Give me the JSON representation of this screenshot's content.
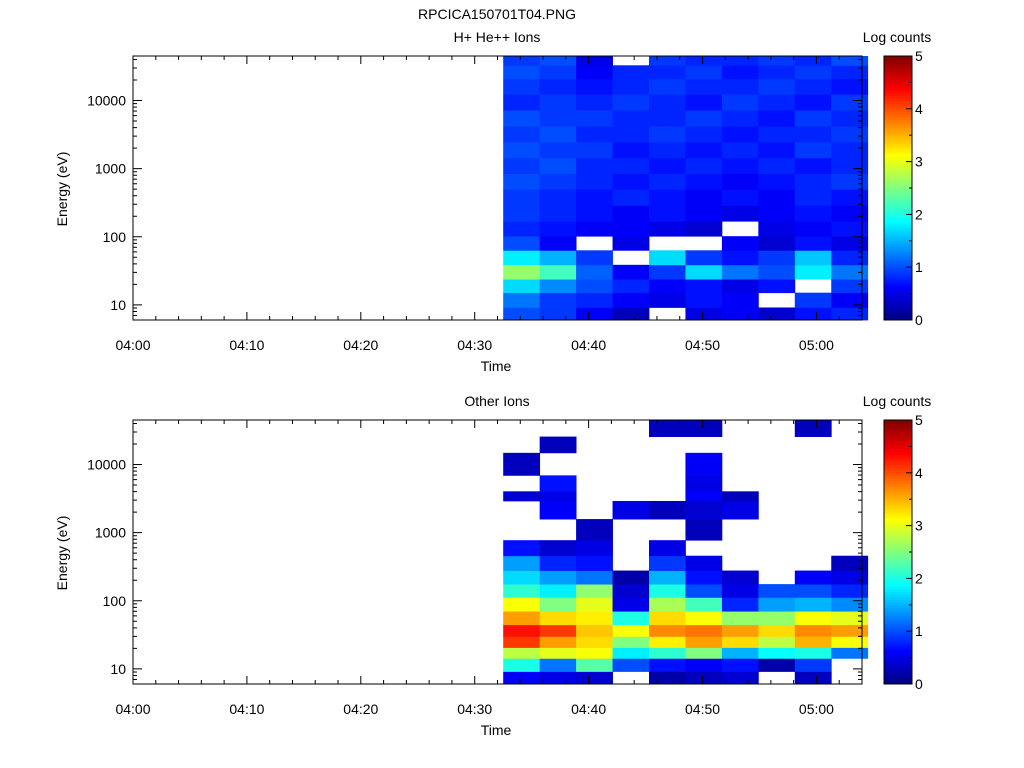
{
  "figure": {
    "title": "RPCICA150701T04.PNG"
  },
  "chart_data": [
    {
      "type": "heatmap",
      "title": "H+ He++ Ions",
      "xlabel": "Time",
      "ylabel": "Energy (eV)",
      "x_ticks": [
        "04:00",
        "04:10",
        "04:20",
        "04:30",
        "04:40",
        "04:50",
        "05:00"
      ],
      "x_range_min": [
        0,
        64
      ],
      "y_scale": "log",
      "y_range_eV": [
        6,
        45000
      ],
      "y_ticks": [
        "10",
        "100",
        "1000",
        "10000"
      ],
      "colorbar": {
        "label": "Log counts",
        "range": [
          0,
          5
        ],
        "ticks": [
          "0",
          "1",
          "2",
          "3",
          "4",
          "5"
        ],
        "colormap": "jet"
      },
      "data_start_min": 32.5,
      "column_width_min": 3.2,
      "bins": [
        {
          "e": 7,
          "v": [
            1.0,
            0.9,
            0.6,
            0.3,
            null,
            0.5,
            0.6,
            0.4,
            0.7,
            0.8
          ]
        },
        {
          "e": 12,
          "v": [
            1.2,
            0.9,
            0.8,
            0.6,
            0.5,
            0.7,
            0.6,
            null,
            0.9,
            0.6
          ]
        },
        {
          "e": 19,
          "v": [
            1.7,
            1.3,
            1.0,
            0.8,
            0.6,
            0.7,
            0.5,
            0.7,
            null,
            0.9
          ]
        },
        {
          "e": 30,
          "v": [
            2.6,
            2.2,
            1.1,
            0.6,
            0.9,
            1.7,
            1.2,
            1.0,
            1.8,
            1.2
          ]
        },
        {
          "e": 50,
          "v": [
            1.8,
            1.5,
            0.9,
            null,
            1.7,
            0.9,
            0.7,
            0.9,
            1.6,
            0.8
          ]
        },
        {
          "e": 80,
          "v": [
            1.0,
            0.6,
            null,
            0.5,
            null,
            null,
            0.6,
            0.4,
            0.7,
            0.5
          ]
        },
        {
          "e": 130,
          "v": [
            0.8,
            0.7,
            0.6,
            0.6,
            0.5,
            0.4,
            null,
            0.5,
            0.6,
            0.7
          ]
        },
        {
          "e": 220,
          "v": [
            0.9,
            0.8,
            0.7,
            0.6,
            0.7,
            0.6,
            0.5,
            0.6,
            0.7,
            0.6
          ]
        },
        {
          "e": 380,
          "v": [
            0.9,
            0.8,
            0.7,
            0.8,
            0.7,
            0.6,
            0.7,
            0.6,
            0.8,
            0.7
          ]
        },
        {
          "e": 650,
          "v": [
            1.0,
            0.9,
            0.8,
            0.7,
            0.8,
            0.7,
            0.6,
            0.7,
            0.8,
            0.9
          ]
        },
        {
          "e": 1100,
          "v": [
            0.9,
            1.0,
            0.8,
            0.8,
            0.7,
            0.8,
            0.7,
            0.8,
            0.7,
            0.8
          ]
        },
        {
          "e": 1900,
          "v": [
            1.0,
            0.9,
            0.9,
            0.7,
            0.8,
            0.7,
            0.8,
            0.7,
            0.9,
            0.8
          ]
        },
        {
          "e": 3200,
          "v": [
            0.9,
            1.0,
            0.8,
            0.8,
            0.9,
            0.8,
            0.7,
            0.8,
            0.8,
            0.9
          ]
        },
        {
          "e": 5500,
          "v": [
            1.0,
            0.9,
            0.9,
            0.8,
            0.8,
            0.9,
            0.8,
            0.7,
            0.9,
            0.8
          ]
        },
        {
          "e": 9500,
          "v": [
            0.8,
            0.9,
            0.8,
            0.9,
            0.8,
            0.7,
            0.9,
            0.8,
            0.7,
            0.9
          ]
        },
        {
          "e": 16000,
          "v": [
            0.9,
            0.8,
            0.7,
            0.8,
            0.9,
            0.8,
            0.8,
            0.9,
            0.8,
            0.7
          ]
        },
        {
          "e": 27000,
          "v": [
            1.0,
            0.9,
            0.6,
            0.8,
            0.8,
            0.9,
            0.7,
            0.8,
            0.9,
            0.8
          ]
        },
        {
          "e": 40000,
          "v": [
            0.9,
            1.0,
            0.5,
            null,
            0.9,
            0.8,
            0.8,
            0.9,
            0.8,
            1.0
          ]
        }
      ]
    },
    {
      "type": "heatmap",
      "title": "Other Ions",
      "xlabel": "Time",
      "ylabel": "Energy (eV)",
      "x_ticks": [
        "04:00",
        "04:10",
        "04:20",
        "04:30",
        "04:40",
        "04:50",
        "05:00"
      ],
      "x_range_min": [
        0,
        64
      ],
      "y_scale": "log",
      "y_range_eV": [
        6,
        45000
      ],
      "y_ticks": [
        "10",
        "100",
        "1000",
        "10000"
      ],
      "colorbar": {
        "label": "Log counts",
        "range": [
          0,
          5
        ],
        "ticks": [
          "0",
          "1",
          "2",
          "3",
          "4",
          "5"
        ],
        "colormap": "jet"
      },
      "data_start_min": 32.5,
      "column_width_min": 3.2,
      "bins": [
        {
          "e": 7,
          "v": [
            0.6,
            0.5,
            0.4,
            null,
            0.2,
            0.3,
            0.4,
            null,
            0.3,
            null
          ]
        },
        {
          "e": 12,
          "v": [
            2.0,
            1.2,
            2.3,
            1.0,
            0.7,
            0.6,
            0.7,
            0.2,
            0.9,
            null
          ]
        },
        {
          "e": 17,
          "v": [
            2.8,
            3.0,
            3.1,
            1.8,
            2.1,
            2.5,
            1.5,
            1.9,
            2.0,
            1.2
          ]
        },
        {
          "e": 25,
          "v": [
            4.1,
            3.6,
            3.3,
            2.5,
            3.2,
            3.6,
            3.3,
            2.8,
            3.5,
            3.1
          ]
        },
        {
          "e": 36,
          "v": [
            4.3,
            4.1,
            3.4,
            3.1,
            3.7,
            3.8,
            3.6,
            3.3,
            3.7,
            3.6
          ]
        },
        {
          "e": 55,
          "v": [
            3.6,
            3.3,
            3.2,
            2.0,
            3.3,
            3.1,
            2.6,
            2.6,
            3.1,
            3.0
          ]
        },
        {
          "e": 90,
          "v": [
            3.1,
            2.5,
            3.0,
            0.5,
            2.7,
            2.2,
            0.8,
            1.4,
            1.5,
            1.3
          ]
        },
        {
          "e": 140,
          "v": [
            2.1,
            1.8,
            2.6,
            0.4,
            2.0,
            1.0,
            0.5,
            1.0,
            1.0,
            0.8
          ]
        },
        {
          "e": 220,
          "v": [
            1.7,
            1.4,
            1.2,
            0.2,
            1.5,
            0.7,
            0.4,
            null,
            0.6,
            0.5
          ]
        },
        {
          "e": 350,
          "v": [
            1.4,
            0.8,
            0.7,
            null,
            0.9,
            0.5,
            null,
            null,
            null,
            0.3
          ]
        },
        {
          "e": 600,
          "v": [
            0.7,
            0.4,
            0.5,
            null,
            0.5,
            null,
            null,
            null,
            null,
            null
          ]
        },
        {
          "e": 1000,
          "v": [
            null,
            null,
            0.3,
            null,
            null,
            0.3,
            null,
            null,
            null,
            null
          ]
        },
        {
          "e": 2500,
          "v": [
            null,
            0.6,
            null,
            0.5,
            0.3,
            0.4,
            0.5,
            null,
            null,
            null
          ]
        },
        {
          "e": 3400,
          "v": [
            0.4,
            0.5,
            null,
            null,
            null,
            0.6,
            0.3,
            null,
            null,
            null
          ]
        },
        {
          "e": 4800,
          "v": [
            null,
            0.7,
            null,
            null,
            null,
            0.5,
            null,
            null,
            null,
            null
          ]
        },
        {
          "e": 10000,
          "v": [
            0.3,
            null,
            null,
            null,
            null,
            0.6,
            null,
            null,
            null,
            null
          ]
        },
        {
          "e": 22000,
          "v": [
            null,
            0.3,
            null,
            null,
            null,
            null,
            null,
            null,
            null,
            null
          ]
        },
        {
          "e": 30000,
          "v": [
            null,
            null,
            null,
            null,
            0.3,
            0.3,
            null,
            null,
            0.3,
            null
          ]
        }
      ]
    }
  ]
}
